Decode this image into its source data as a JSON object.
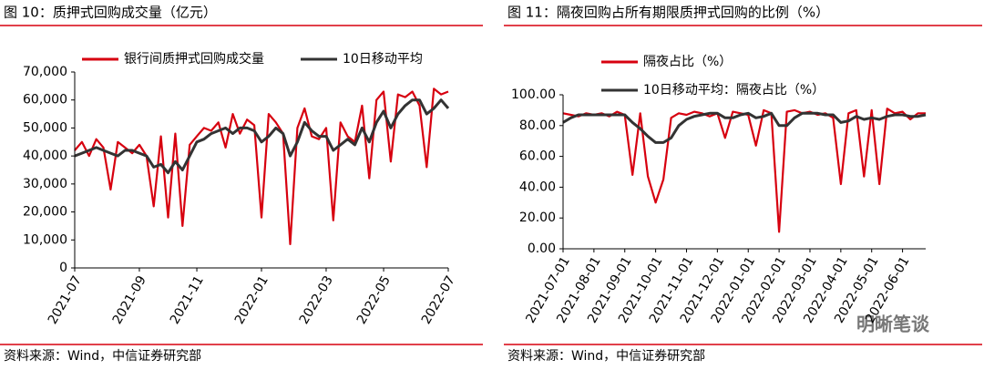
{
  "chart_data": [
    {
      "type": "line",
      "title": "图 10：质押式回购成交量（亿元）",
      "source": "资料来源：Wind，中信证券研究部",
      "legend": "top",
      "categories": [
        "2021-07",
        null,
        null,
        null,
        null,
        null,
        null,
        null,
        null,
        "2021-09",
        null,
        null,
        null,
        null,
        null,
        null,
        null,
        "2021-11",
        null,
        null,
        null,
        null,
        null,
        null,
        null,
        null,
        "2022-01",
        null,
        null,
        null,
        null,
        null,
        null,
        null,
        null,
        "2022-03",
        null,
        null,
        null,
        null,
        null,
        null,
        null,
        "2022-05",
        null,
        null,
        null,
        null,
        null,
        null,
        null,
        null,
        "2022-07"
      ],
      "series": [
        {
          "name": "银行间质押式回购成交量",
          "color": "#d7000f",
          "values": [
            42000,
            45000,
            40000,
            46000,
            43000,
            28000,
            45000,
            43000,
            41000,
            44000,
            40000,
            22000,
            47000,
            18000,
            48000,
            15000,
            44000,
            47000,
            50000,
            49000,
            52000,
            43000,
            55000,
            48000,
            53000,
            51000,
            18000,
            55000,
            52000,
            48000,
            8500,
            50000,
            57000,
            47000,
            46000,
            50000,
            17000,
            52000,
            47000,
            45000,
            58000,
            32000,
            60000,
            63000,
            38000,
            62000,
            61000,
            63000,
            58000,
            36000,
            64000,
            62000,
            63000
          ]
        },
        {
          "name": "10日移动平均",
          "color": "#333333",
          "values": [
            40000,
            41000,
            42000,
            43000,
            42000,
            41000,
            40000,
            42000,
            42000,
            41000,
            40000,
            36000,
            37000,
            34000,
            38000,
            35000,
            40000,
            45000,
            46000,
            48000,
            49000,
            50000,
            48000,
            50000,
            50000,
            49000,
            45000,
            47000,
            50000,
            48000,
            40000,
            45000,
            52000,
            49000,
            47000,
            47000,
            42000,
            44000,
            46000,
            44000,
            50000,
            45000,
            52000,
            56000,
            50000,
            55000,
            58000,
            60000,
            60000,
            55000,
            57000,
            60000,
            57000
          ]
        }
      ],
      "ylim": [
        0,
        70000
      ],
      "yticks": [
        0,
        {
          "value": 10000,
          "label": "10,000"
        },
        {
          "value": 20000,
          "label": "20,000"
        },
        {
          "value": 30000,
          "label": "30,000"
        },
        {
          "value": 40000,
          "label": "40,000"
        },
        {
          "value": 50000,
          "label": "50,000"
        },
        {
          "value": 60000,
          "label": "60,000"
        },
        {
          "value": 70000,
          "label": "70,000"
        }
      ]
    },
    {
      "type": "line",
      "title": "图 11：隔夜回购占所有期限质押式回购的比例（%）",
      "source": "资料来源：Wind，中信证券研究部",
      "legend": "top",
      "categories": [
        "2021-07-01",
        null,
        null,
        null,
        "2021-08-01",
        null,
        null,
        null,
        "2021-09-01",
        null,
        null,
        null,
        "2021-10-01",
        null,
        null,
        null,
        "2021-11-01",
        null,
        null,
        null,
        "2021-12-01",
        null,
        null,
        null,
        "2022-01-01",
        null,
        null,
        null,
        "2022-02-01",
        null,
        null,
        null,
        "2022-03-01",
        null,
        null,
        null,
        "2022-04-01",
        null,
        null,
        null,
        "2022-05-01",
        null,
        null,
        null,
        "2022-06-01",
        null,
        null,
        null
      ],
      "series": [
        {
          "name": "隔夜占比（%）",
          "color": "#d7000f",
          "values": [
            88,
            87,
            86,
            88,
            87,
            88,
            86,
            89,
            87,
            48,
            88,
            47,
            30,
            45,
            85,
            88,
            87,
            89,
            88,
            86,
            88,
            72,
            89,
            88,
            87,
            67,
            90,
            88,
            11,
            89,
            90,
            88,
            89,
            87,
            88,
            85,
            42,
            88,
            90,
            47,
            90,
            42,
            91,
            88,
            89,
            84,
            88,
            88
          ]
        },
        {
          "name": "10日移动平均：隔夜占比（%）",
          "color": "#333333",
          "values": [
            82,
            85,
            87,
            87,
            87,
            87,
            87,
            87,
            87,
            82,
            78,
            73,
            69,
            69,
            72,
            80,
            84,
            86,
            87,
            88,
            88,
            85,
            85,
            87,
            88,
            85,
            86,
            88,
            80,
            80,
            85,
            88,
            88,
            88,
            87,
            87,
            82,
            83,
            86,
            84,
            85,
            84,
            86,
            87,
            87,
            86,
            86,
            87
          ]
        }
      ],
      "ylim": [
        0,
        100
      ],
      "yticks": [
        {
          "value": 0,
          "label": "0.00"
        },
        {
          "value": 20,
          "label": "20.00"
        },
        {
          "value": 40,
          "label": "40.00"
        },
        {
          "value": 60,
          "label": "60.00"
        },
        {
          "value": 80,
          "label": "80.00"
        },
        {
          "value": 100,
          "label": "100.00"
        }
      ]
    }
  ],
  "watermark": "明晰笔谈"
}
